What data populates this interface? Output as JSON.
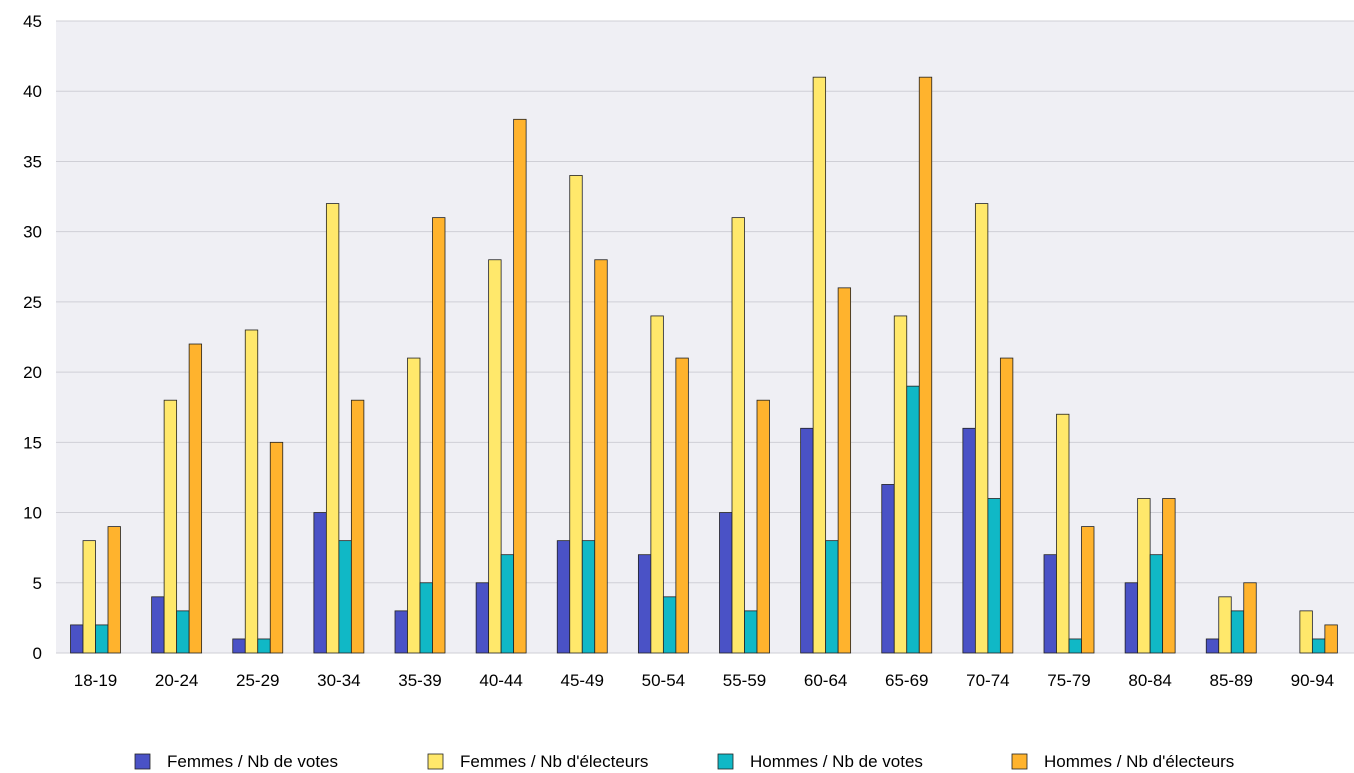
{
  "chart_data": {
    "type": "bar",
    "title": "",
    "xlabel": "",
    "ylabel": "",
    "categories": [
      "18-19",
      "20-24",
      "25-29",
      "30-34",
      "35-39",
      "40-44",
      "45-49",
      "50-54",
      "55-59",
      "60-64",
      "65-69",
      "70-74",
      "75-79",
      "80-84",
      "85-89",
      "90-94"
    ],
    "ylim": [
      0,
      45
    ],
    "yticks": [
      0,
      5,
      10,
      15,
      20,
      25,
      30,
      35,
      40,
      45
    ],
    "grid": true,
    "legend_position": "bottom",
    "series": [
      {
        "name": "Femmes / Nb de votes",
        "color": "#4a52c6",
        "values": [
          2,
          4,
          1,
          10,
          3,
          5,
          8,
          7,
          10,
          16,
          12,
          16,
          7,
          5,
          1,
          0
        ]
      },
      {
        "name": "Femmes / Nb d'électeurs",
        "color": "#ffe86b",
        "values": [
          8,
          18,
          23,
          32,
          21,
          28,
          34,
          24,
          31,
          41,
          24,
          32,
          17,
          11,
          4,
          3
        ]
      },
      {
        "name": "Hommes / Nb de votes",
        "color": "#10b8c6",
        "values": [
          2,
          3,
          1,
          8,
          5,
          7,
          8,
          4,
          3,
          8,
          19,
          11,
          1,
          7,
          3,
          1
        ]
      },
      {
        "name": "Hommes / Nb d'électeurs",
        "color": "#ffb32d",
        "values": [
          9,
          22,
          15,
          18,
          31,
          38,
          28,
          21,
          18,
          26,
          41,
          21,
          9,
          11,
          5,
          2
        ]
      }
    ]
  }
}
